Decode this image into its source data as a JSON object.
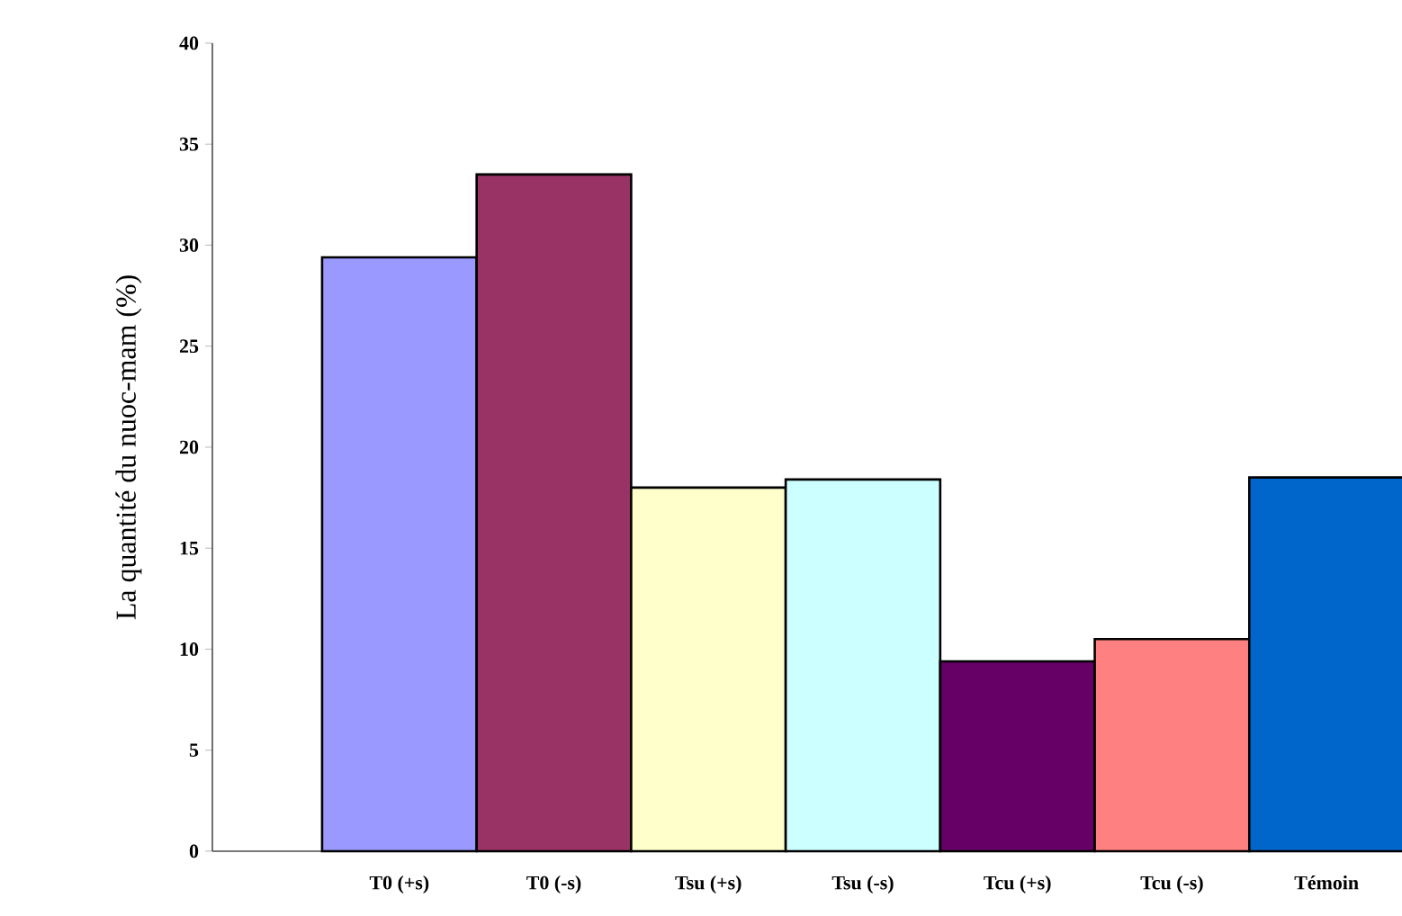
{
  "chart_data": {
    "type": "bar",
    "ylabel": "La quantité du nuoc-mam (%)",
    "categories": [
      "T0 (+s)",
      "T0 (-s)",
      "Tsu (+s)",
      "Tsu (-s)",
      "Tcu (+s)",
      "Tcu (-s)",
      "Témoin"
    ],
    "values": [
      29.4,
      33.5,
      18.0,
      18.4,
      9.4,
      10.5,
      18.5
    ],
    "colors": [
      "#9999ff",
      "#993366",
      "#ffffcc",
      "#ccffff",
      "#660066",
      "#ff8080",
      "#0066cc"
    ],
    "ylim": [
      0,
      40
    ],
    "yticks": [
      0,
      5,
      10,
      15,
      20,
      25,
      30,
      35,
      40
    ]
  }
}
